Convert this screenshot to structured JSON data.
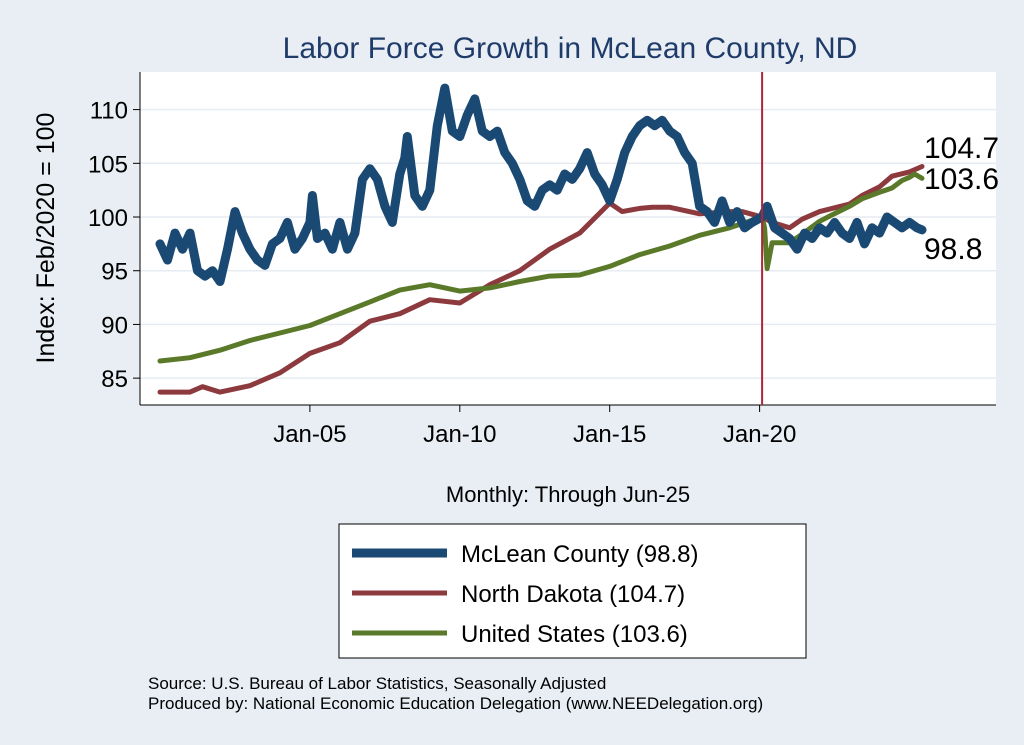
{
  "chart_data": {
    "type": "line",
    "title": "Labor Force Growth in McLean  County, ND",
    "ylabel": "Index: Feb/2020 = 100",
    "xlabel": "Monthly: Through Jun-25",
    "x_range": [
      "2000-01",
      "2025-06"
    ],
    "ylim": [
      82.5,
      113.5
    ],
    "y_ticks": [
      85,
      90,
      95,
      100,
      105,
      110
    ],
    "x_ticks": [
      {
        "label": "Jan-05",
        "date": "2005-01"
      },
      {
        "label": "Jan-10",
        "date": "2010-01"
      },
      {
        "label": "Jan-15",
        "date": "2015-01"
      },
      {
        "label": "Jan-20",
        "date": "2020-01"
      }
    ],
    "reference_line": {
      "date": "2020-02",
      "color": "#b0243c"
    },
    "grid": true,
    "legend_position": "bottom",
    "series": [
      {
        "name": "McLean  County (98.8)",
        "color": "#1a4a74",
        "end_label": "98.8",
        "points": [
          [
            "2000-01",
            97.5
          ],
          [
            "2000-04",
            96.0
          ],
          [
            "2000-07",
            98.5
          ],
          [
            "2000-10",
            97.0
          ],
          [
            "2001-01",
            98.5
          ],
          [
            "2001-04",
            95.0
          ],
          [
            "2001-07",
            94.5
          ],
          [
            "2001-10",
            95.0
          ],
          [
            "2002-01",
            94.0
          ],
          [
            "2002-04",
            97.0
          ],
          [
            "2002-07",
            100.5
          ],
          [
            "2002-10",
            98.5
          ],
          [
            "2003-01",
            97.0
          ],
          [
            "2003-04",
            96.0
          ],
          [
            "2003-07",
            95.5
          ],
          [
            "2003-10",
            97.5
          ],
          [
            "2004-01",
            98.0
          ],
          [
            "2004-04",
            99.5
          ],
          [
            "2004-07",
            97.0
          ],
          [
            "2004-10",
            98.0
          ],
          [
            "2005-01",
            99.5
          ],
          [
            "2005-02",
            102.0
          ],
          [
            "2005-04",
            98.0
          ],
          [
            "2005-07",
            98.5
          ],
          [
            "2005-10",
            97.0
          ],
          [
            "2006-01",
            99.5
          ],
          [
            "2006-04",
            97.0
          ],
          [
            "2006-07",
            98.5
          ],
          [
            "2006-10",
            103.5
          ],
          [
            "2007-01",
            104.5
          ],
          [
            "2007-04",
            103.5
          ],
          [
            "2007-07",
            101.0
          ],
          [
            "2007-10",
            99.5
          ],
          [
            "2008-01",
            104.0
          ],
          [
            "2008-03",
            105.5
          ],
          [
            "2008-04",
            107.5
          ],
          [
            "2008-07",
            102.0
          ],
          [
            "2008-10",
            101.0
          ],
          [
            "2009-01",
            102.5
          ],
          [
            "2009-04",
            108.5
          ],
          [
            "2009-07",
            112.0
          ],
          [
            "2009-10",
            108.0
          ],
          [
            "2010-01",
            107.5
          ],
          [
            "2010-04",
            109.5
          ],
          [
            "2010-07",
            111.0
          ],
          [
            "2010-10",
            108.0
          ],
          [
            "2011-01",
            107.5
          ],
          [
            "2011-04",
            108.0
          ],
          [
            "2011-07",
            106.0
          ],
          [
            "2011-10",
            105.0
          ],
          [
            "2012-01",
            103.5
          ],
          [
            "2012-04",
            101.5
          ],
          [
            "2012-07",
            101.0
          ],
          [
            "2012-10",
            102.5
          ],
          [
            "2013-01",
            103.0
          ],
          [
            "2013-04",
            102.5
          ],
          [
            "2013-07",
            104.0
          ],
          [
            "2013-10",
            103.5
          ],
          [
            "2014-01",
            104.5
          ],
          [
            "2014-04",
            106.0
          ],
          [
            "2014-07",
            104.0
          ],
          [
            "2014-10",
            103.0
          ],
          [
            "2015-01",
            101.5
          ],
          [
            "2015-04",
            103.5
          ],
          [
            "2015-07",
            106.0
          ],
          [
            "2015-10",
            107.5
          ],
          [
            "2016-01",
            108.5
          ],
          [
            "2016-04",
            109.0
          ],
          [
            "2016-07",
            108.5
          ],
          [
            "2016-10",
            109.0
          ],
          [
            "2017-01",
            108.0
          ],
          [
            "2017-04",
            107.5
          ],
          [
            "2017-07",
            106.0
          ],
          [
            "2017-10",
            105.0
          ],
          [
            "2018-01",
            101.0
          ],
          [
            "2018-04",
            100.5
          ],
          [
            "2018-07",
            99.5
          ],
          [
            "2018-10",
            101.5
          ],
          [
            "2019-01",
            99.5
          ],
          [
            "2019-04",
            100.5
          ],
          [
            "2019-07",
            99.0
          ],
          [
            "2019-10",
            99.5
          ],
          [
            "2020-02",
            100.0
          ],
          [
            "2020-04",
            101.0
          ],
          [
            "2020-07",
            99.0
          ],
          [
            "2020-10",
            98.5
          ],
          [
            "2021-01",
            98.0
          ],
          [
            "2021-04",
            97.0
          ],
          [
            "2021-07",
            98.5
          ],
          [
            "2021-10",
            98.0
          ],
          [
            "2022-01",
            99.0
          ],
          [
            "2022-04",
            98.5
          ],
          [
            "2022-07",
            99.5
          ],
          [
            "2022-10",
            98.5
          ],
          [
            "2023-01",
            98.0
          ],
          [
            "2023-04",
            99.5
          ],
          [
            "2023-07",
            97.5
          ],
          [
            "2023-10",
            99.0
          ],
          [
            "2024-01",
            98.5
          ],
          [
            "2024-04",
            100.0
          ],
          [
            "2024-07",
            99.5
          ],
          [
            "2024-10",
            99.0
          ],
          [
            "2025-01",
            99.5
          ],
          [
            "2025-04",
            99.0
          ],
          [
            "2025-06",
            98.8
          ]
        ]
      },
      {
        "name": "North Dakota (104.7)",
        "color": "#8c3a3e",
        "end_label": "104.7",
        "points": [
          [
            "2000-01",
            83.7
          ],
          [
            "2001-01",
            83.7
          ],
          [
            "2001-06",
            84.2
          ],
          [
            "2002-01",
            83.7
          ],
          [
            "2003-01",
            84.3
          ],
          [
            "2004-01",
            85.5
          ],
          [
            "2005-01",
            87.3
          ],
          [
            "2006-01",
            88.3
          ],
          [
            "2007-01",
            90.3
          ],
          [
            "2008-01",
            91.0
          ],
          [
            "2009-01",
            92.3
          ],
          [
            "2010-01",
            92.0
          ],
          [
            "2011-01",
            93.7
          ],
          [
            "2012-01",
            95.0
          ],
          [
            "2013-01",
            97.0
          ],
          [
            "2014-01",
            98.5
          ],
          [
            "2015-01",
            101.3
          ],
          [
            "2015-06",
            100.5
          ],
          [
            "2016-01",
            100.8
          ],
          [
            "2016-06",
            100.9
          ],
          [
            "2017-01",
            100.9
          ],
          [
            "2018-01",
            100.3
          ],
          [
            "2019-01",
            100.5
          ],
          [
            "2019-06",
            100.5
          ],
          [
            "2020-02",
            100.0
          ],
          [
            "2020-06",
            99.5
          ],
          [
            "2021-01",
            99.0
          ],
          [
            "2021-06",
            99.8
          ],
          [
            "2022-01",
            100.5
          ],
          [
            "2023-01",
            101.2
          ],
          [
            "2023-06",
            102.0
          ],
          [
            "2024-01",
            102.8
          ],
          [
            "2024-06",
            103.8
          ],
          [
            "2025-01",
            104.2
          ],
          [
            "2025-06",
            104.7
          ]
        ]
      },
      {
        "name": "United States (103.6)",
        "color": "#5a7a2a",
        "end_label": "103.6",
        "points": [
          [
            "2000-01",
            86.6
          ],
          [
            "2001-01",
            86.9
          ],
          [
            "2002-01",
            87.6
          ],
          [
            "2003-01",
            88.5
          ],
          [
            "2004-01",
            89.2
          ],
          [
            "2005-01",
            89.9
          ],
          [
            "2006-01",
            91.0
          ],
          [
            "2007-01",
            92.1
          ],
          [
            "2008-01",
            93.2
          ],
          [
            "2009-01",
            93.7
          ],
          [
            "2010-01",
            93.1
          ],
          [
            "2011-01",
            93.4
          ],
          [
            "2012-01",
            94.0
          ],
          [
            "2013-01",
            94.5
          ],
          [
            "2014-01",
            94.6
          ],
          [
            "2015-01",
            95.4
          ],
          [
            "2016-01",
            96.5
          ],
          [
            "2017-01",
            97.3
          ],
          [
            "2018-01",
            98.3
          ],
          [
            "2019-01",
            99.0
          ],
          [
            "2020-02",
            100.0
          ],
          [
            "2020-03",
            99.0
          ],
          [
            "2020-04",
            95.2
          ],
          [
            "2020-06",
            97.6
          ],
          [
            "2021-01",
            97.6
          ],
          [
            "2021-06",
            98.4
          ],
          [
            "2022-01",
            99.6
          ],
          [
            "2022-06",
            100.2
          ],
          [
            "2023-01",
            101.0
          ],
          [
            "2023-06",
            101.7
          ],
          [
            "2024-01",
            102.3
          ],
          [
            "2024-06",
            102.7
          ],
          [
            "2024-10",
            103.4
          ],
          [
            "2025-01",
            103.7
          ],
          [
            "2025-03",
            104.0
          ],
          [
            "2025-06",
            103.6
          ]
        ]
      }
    ]
  },
  "notes": {
    "source": "Source: U.S. Bureau of Labor Statistics, Seasonally Adjusted",
    "produced": "Produced by: National Economic Education Delegation (www.NEEDelegation.org)"
  }
}
